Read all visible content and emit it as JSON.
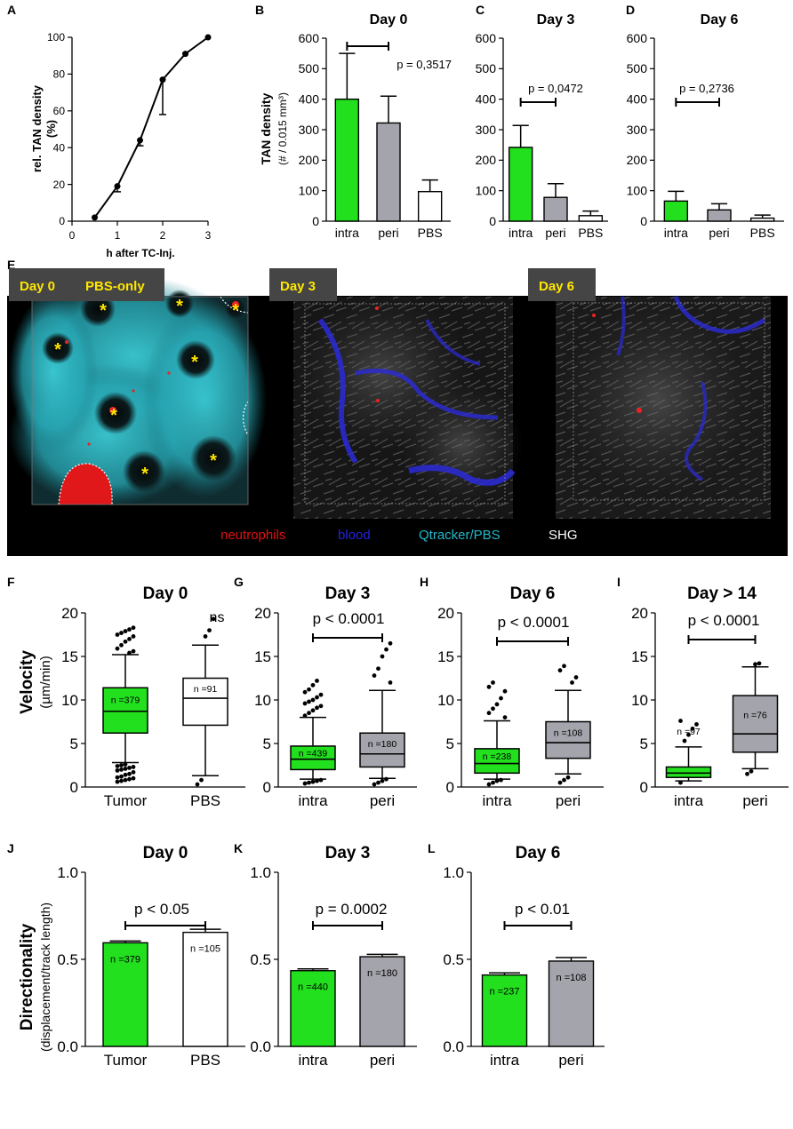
{
  "colors": {
    "green": "#22e01e",
    "gray": "#a4a4ac",
    "white": "#ffffff",
    "neutrophils": "#e01010",
    "blood": "#2222dd",
    "qtracker": "#22b8c8",
    "shg": "#ffffff",
    "tag_bg": "#454545",
    "tag_text": "#ffe600"
  },
  "panels": {
    "A": {
      "letter": "A",
      "ylabel1": "rel. TAN density",
      "ylabel2": "(%)",
      "xlabel": "h after TC-Inj."
    },
    "B": {
      "letter": "B",
      "ylabel1": "TAN density",
      "ylabel2": "(# / 0.015 mm³)"
    },
    "C": {
      "letter": "C"
    },
    "D": {
      "letter": "D"
    },
    "E": {
      "letter": "E"
    },
    "F": {
      "letter": "F",
      "ylabel1": "Velocity",
      "ylabel2": "(µm/min)"
    },
    "G": {
      "letter": "G"
    },
    "H": {
      "letter": "H"
    },
    "I": {
      "letter": "I"
    },
    "J": {
      "letter": "J",
      "ylabel1": "Directionality",
      "ylabel2": "(displacement/track length)"
    },
    "K": {
      "letter": "K"
    },
    "L": {
      "letter": "L"
    }
  },
  "microscopy": {
    "tags": [
      "Day 0",
      "PBS-only",
      "Day 3",
      "Day 6"
    ],
    "legend": [
      "neutrophils",
      "blood",
      "Qtracker/PBS",
      "SHG"
    ],
    "asterisk": "*"
  },
  "chart_data": [
    {
      "id": "A",
      "type": "line",
      "title": "",
      "xlabel": "h after TC-Inj.",
      "ylabel": "rel. TAN density (%)",
      "xlim": [
        0,
        3
      ],
      "ylim": [
        0,
        100
      ],
      "xticks": [
        0,
        1,
        2,
        3
      ],
      "yticks": [
        0,
        20,
        40,
        60,
        80,
        100
      ],
      "x": [
        0.5,
        1,
        1.5,
        2,
        2.5,
        3
      ],
      "y": [
        2,
        19,
        44,
        77,
        91,
        100
      ],
      "err_low": [
        0,
        3,
        3,
        19,
        0,
        0
      ]
    },
    {
      "id": "B",
      "type": "bar",
      "title": "Day 0",
      "categories": [
        "intra",
        "peri",
        "PBS"
      ],
      "values": [
        400,
        322,
        97
      ],
      "errors": [
        150,
        88,
        38
      ],
      "ylim": [
        0,
        600
      ],
      "yticks": [
        0,
        100,
        200,
        300,
        400,
        500,
        600
      ],
      "fills": [
        "green",
        "gray",
        "white"
      ],
      "annotation": "p = 0,3517",
      "bracket": [
        0,
        1
      ]
    },
    {
      "id": "C",
      "type": "bar",
      "title": "Day 3",
      "categories": [
        "intra",
        "peri",
        "PBS"
      ],
      "values": [
        242,
        78,
        18
      ],
      "errors": [
        72,
        45,
        15
      ],
      "ylim": [
        0,
        600
      ],
      "yticks": [
        0,
        100,
        200,
        300,
        400,
        500,
        600
      ],
      "fills": [
        "green",
        "gray",
        "white"
      ],
      "annotation": "p = 0,0472",
      "bracket": [
        0,
        1
      ]
    },
    {
      "id": "D",
      "type": "bar",
      "title": "Day 6",
      "categories": [
        "intra",
        "peri",
        "PBS"
      ],
      "values": [
        66,
        37,
        10
      ],
      "errors": [
        32,
        20,
        10
      ],
      "ylim": [
        0,
        600
      ],
      "yticks": [
        0,
        100,
        200,
        300,
        400,
        500,
        600
      ],
      "fills": [
        "green",
        "gray",
        "white"
      ],
      "annotation": "p = 0,2736",
      "bracket": [
        0,
        1
      ]
    },
    {
      "id": "F",
      "type": "box",
      "title": "Day 0",
      "categories": [
        "Tumor",
        "PBS"
      ],
      "ylim": [
        0,
        20
      ],
      "yticks": [
        0,
        5,
        10,
        15,
        20
      ],
      "fills": [
        "green",
        "white"
      ],
      "annotation": "ns",
      "bracket": null,
      "boxes": [
        {
          "min": 2.8,
          "q1": 6.2,
          "median": 8.7,
          "q3": 11.4,
          "max": 15.2,
          "n": "n =379",
          "outliers": [
            0.6,
            0.7,
            0.8,
            0.9,
            1.0,
            1.1,
            1.2,
            1.4,
            1.5,
            1.7,
            1.9,
            2.0,
            2.1,
            2.2,
            2.3,
            2.4,
            2.5,
            2.6,
            15.4,
            15.6,
            15.9,
            16.3,
            16.7,
            17.0,
            17.3,
            17.5,
            17.7,
            17.9,
            18.1,
            18.3
          ]
        },
        {
          "min": 1.3,
          "q1": 7.1,
          "median": 10.2,
          "q3": 12.5,
          "max": 16.3,
          "n": "n =91",
          "outliers": [
            0.3,
            0.8,
            17.3,
            18.0,
            19.3
          ]
        }
      ]
    },
    {
      "id": "G",
      "type": "box",
      "title": "Day 3",
      "categories": [
        "intra",
        "peri"
      ],
      "ylim": [
        0,
        20
      ],
      "yticks": [
        0,
        5,
        10,
        15,
        20
      ],
      "fills": [
        "green",
        "gray"
      ],
      "annotation": "p < 0.0001",
      "bracket": [
        0,
        1
      ],
      "boxes": [
        {
          "min": 0.9,
          "q1": 2.0,
          "median": 3.2,
          "q3": 4.7,
          "max": 8.0,
          "n": "n =439",
          "outliers": [
            0.4,
            0.5,
            0.6,
            0.7,
            0.8,
            8.2,
            8.5,
            8.8,
            9.1,
            9.3,
            9.6,
            9.8,
            10.0,
            10.3,
            10.6,
            10.9,
            11.2,
            11.7,
            12.2
          ]
        },
        {
          "min": 1.0,
          "q1": 2.3,
          "median": 3.8,
          "q3": 6.2,
          "max": 11.1,
          "n": "n =180",
          "outliers": [
            0.3,
            0.5,
            0.7,
            0.9,
            12.0,
            12.8,
            13.6,
            15.0,
            15.8,
            16.5
          ]
        }
      ]
    },
    {
      "id": "H",
      "type": "box",
      "title": "Day 6",
      "categories": [
        "intra",
        "peri"
      ],
      "ylim": [
        0,
        20
      ],
      "yticks": [
        0,
        5,
        10,
        15,
        20
      ],
      "fills": [
        "green",
        "gray"
      ],
      "annotation": "p < 0.0001",
      "bracket": [
        0,
        1
      ],
      "boxes": [
        {
          "min": 0.9,
          "q1": 1.6,
          "median": 2.7,
          "q3": 4.4,
          "max": 7.6,
          "n": "n =238",
          "outliers": [
            0.3,
            0.5,
            0.7,
            0.8,
            8.0,
            8.5,
            9.0,
            9.5,
            10.2,
            11.0,
            11.5,
            12.0
          ]
        },
        {
          "min": 1.5,
          "q1": 3.3,
          "median": 5.1,
          "q3": 7.5,
          "max": 11.1,
          "n": "n =108",
          "outliers": [
            0.5,
            0.8,
            1.1,
            12.0,
            12.6,
            13.4,
            13.9
          ]
        }
      ]
    },
    {
      "id": "I",
      "type": "box",
      "title": "Day > 14",
      "categories": [
        "intra",
        "peri"
      ],
      "ylim": [
        0,
        20
      ],
      "yticks": [
        0,
        5,
        10,
        15,
        20
      ],
      "fills": [
        "green",
        "gray"
      ],
      "annotation": "p < 0.0001",
      "bracket": [
        0,
        1
      ],
      "boxes": [
        {
          "min": 0.7,
          "q1": 1.1,
          "median": 1.6,
          "q3": 2.3,
          "max": 4.6,
          "n": "n =97",
          "outliers": [
            0.5,
            5.3,
            6.0,
            6.7,
            7.2,
            7.6
          ]
        },
        {
          "min": 2.1,
          "q1": 4.0,
          "median": 6.1,
          "q3": 10.5,
          "max": 13.8,
          "n": "n =76",
          "outliers": [
            1.5,
            1.8,
            14.1,
            14.2
          ]
        }
      ]
    },
    {
      "id": "J",
      "type": "bar",
      "title": "Day 0",
      "categories": [
        "Tumor",
        "PBS"
      ],
      "values": [
        0.595,
        0.655
      ],
      "errors": [
        0.01,
        0.018
      ],
      "ylim": [
        0,
        1.0
      ],
      "yticks": [
        0.0,
        0.5,
        1.0
      ],
      "ytick_labels": [
        "0.0",
        "0.5",
        "1.0"
      ],
      "fills": [
        "green",
        "white"
      ],
      "annotation": "p < 0.05",
      "bracket": [
        0,
        1
      ],
      "n": [
        "n =379",
        "n =105"
      ]
    },
    {
      "id": "K",
      "type": "bar",
      "title": "Day 3",
      "categories": [
        "intra",
        "peri"
      ],
      "values": [
        0.435,
        0.515
      ],
      "errors": [
        0.01,
        0.014
      ],
      "ylim": [
        0,
        1.0
      ],
      "yticks": [
        0.0,
        0.5,
        1.0
      ],
      "ytick_labels": [
        "0.0",
        "0.5",
        "1.0"
      ],
      "fills": [
        "green",
        "gray"
      ],
      "annotation": "p = 0.0002",
      "bracket": [
        0,
        1
      ],
      "n": [
        "n =440",
        "n =180"
      ]
    },
    {
      "id": "L",
      "type": "bar",
      "title": "Day 6",
      "categories": [
        "intra",
        "peri"
      ],
      "values": [
        0.41,
        0.49
      ],
      "errors": [
        0.012,
        0.02
      ],
      "ylim": [
        0,
        1.0
      ],
      "yticks": [
        0.0,
        0.5,
        1.0
      ],
      "ytick_labels": [
        "0.0",
        "0.5",
        "1.0"
      ],
      "fills": [
        "green",
        "gray"
      ],
      "annotation": "p < 0.01",
      "bracket": [
        0,
        1
      ],
      "n": [
        "n =237",
        "n =108"
      ]
    }
  ]
}
